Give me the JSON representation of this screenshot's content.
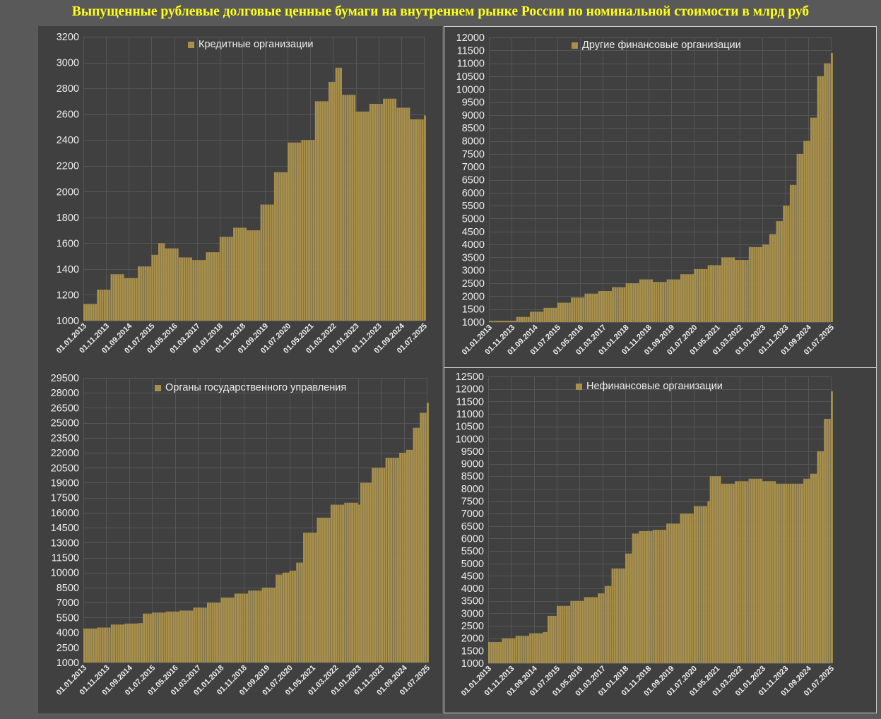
{
  "title": "Выпущенные рублевые долговые ценные бумаги на внутреннем рынке России по номинальной стоимости в млрд руб",
  "colors": {
    "bar": "#a8904c",
    "panel": "#404040",
    "background": "#595959",
    "title": "#ffff1a",
    "text": "#eeeeee"
  },
  "chart_data": [
    {
      "type": "bar",
      "legend": "Кредитные организации",
      "legend_position": "top-center",
      "grid": true,
      "ylim": [
        1000,
        3200
      ],
      "yticks": [
        1000,
        1200,
        1400,
        1600,
        1800,
        2000,
        2200,
        2400,
        2600,
        2800,
        3000,
        3200
      ],
      "xlim": [
        "01.01.2013",
        "01.07.2025"
      ],
      "xticks": [
        "01.01.2013",
        "01.11.2013",
        "01.09.2014",
        "01.07.2015",
        "01.05.2016",
        "01.03.2017",
        "01.01.2018",
        "01.11.2018",
        "01.09.2019",
        "01.07.2020",
        "01.05.2021",
        "01.03.2022",
        "01.01.2023",
        "01.11.2023",
        "01.09.2024",
        "01.07.2025"
      ],
      "x": [
        "01.01.2013",
        "01.07.2013",
        "01.01.2014",
        "01.07.2014",
        "01.01.2015",
        "01.07.2015",
        "01.10.2015",
        "01.01.2016",
        "01.07.2016",
        "01.01.2017",
        "01.07.2017",
        "01.01.2018",
        "01.07.2018",
        "01.01.2019",
        "01.07.2019",
        "01.01.2020",
        "01.07.2020",
        "01.01.2021",
        "01.07.2021",
        "01.01.2022",
        "01.04.2022",
        "01.07.2022",
        "01.01.2023",
        "01.07.2023",
        "01.01.2024",
        "01.07.2024",
        "01.01.2025",
        "01.07.2025"
      ],
      "values": [
        1130,
        1240,
        1360,
        1330,
        1420,
        1510,
        1600,
        1560,
        1490,
        1470,
        1530,
        1650,
        1720,
        1700,
        1900,
        2150,
        2380,
        2400,
        2700,
        2850,
        2960,
        2750,
        2620,
        2680,
        2720,
        2650,
        2560,
        2590
      ]
    },
    {
      "type": "bar",
      "legend": "Другие финансовые организации",
      "legend_position": "top-center",
      "grid": true,
      "ylim": [
        1000,
        12000
      ],
      "yticks": [
        1000,
        1500,
        2000,
        2500,
        3000,
        3500,
        4000,
        4500,
        5000,
        5500,
        6000,
        6500,
        7000,
        7500,
        8000,
        8500,
        9000,
        9500,
        10000,
        10500,
        11000,
        11500,
        12000
      ],
      "xlim": [
        "01.01.2013",
        "01.07.2025"
      ],
      "xticks": [
        "01.01.2013",
        "01.11.2013",
        "01.09.2014",
        "01.07.2015",
        "01.05.2016",
        "01.03.2017",
        "01.01.2018",
        "01.11.2018",
        "01.09.2019",
        "01.07.2020",
        "01.05.2021",
        "01.03.2022",
        "01.01.2023",
        "01.11.2023",
        "01.09.2024",
        "01.07.2025"
      ],
      "x": [
        "01.01.2013",
        "01.01.2014",
        "01.07.2014",
        "01.01.2015",
        "01.07.2015",
        "01.01.2016",
        "01.07.2016",
        "01.01.2017",
        "01.07.2017",
        "01.01.2018",
        "01.07.2018",
        "01.01.2019",
        "01.07.2019",
        "01.01.2020",
        "01.07.2020",
        "01.01.2021",
        "01.07.2021",
        "01.01.2022",
        "01.07.2022",
        "01.01.2023",
        "01.04.2023",
        "01.07.2023",
        "01.10.2023",
        "01.01.2024",
        "01.04.2024",
        "01.07.2024",
        "01.10.2024",
        "01.01.2025",
        "01.04.2025",
        "01.07.2025"
      ],
      "values": [
        1050,
        1200,
        1400,
        1550,
        1750,
        1950,
        2100,
        2200,
        2350,
        2500,
        2650,
        2550,
        2650,
        2850,
        3050,
        3200,
        3500,
        3400,
        3900,
        4000,
        4400,
        4900,
        5500,
        6300,
        7500,
        8000,
        8900,
        10500,
        11000,
        11400
      ]
    },
    {
      "type": "bar",
      "legend": "Органы государственного управления",
      "legend_position": "top-center",
      "grid": true,
      "ylim": [
        1000,
        29500
      ],
      "yticks": [
        1000,
        2500,
        4000,
        5500,
        7000,
        8500,
        10000,
        11500,
        13000,
        14500,
        16000,
        17500,
        19000,
        20500,
        22000,
        23500,
        25000,
        26500,
        28000,
        29500
      ],
      "xlim": [
        "01.01.2013",
        "01.07.2025"
      ],
      "xticks": [
        "01.01.2013",
        "01.11.2013",
        "01.09.2014",
        "01.07.2015",
        "01.05.2016",
        "01.03.2017",
        "01.01.2018",
        "01.11.2018",
        "01.09.2019",
        "01.07.2020",
        "01.05.2021",
        "01.03.2022",
        "01.01.2023",
        "01.11.2023",
        "01.09.2024",
        "01.07.2025"
      ],
      "x": [
        "01.01.2013",
        "01.07.2013",
        "01.01.2014",
        "01.07.2014",
        "01.01.2015",
        "01.03.2015",
        "01.07.2015",
        "01.01.2016",
        "01.07.2016",
        "01.01.2017",
        "01.07.2017",
        "01.01.2018",
        "01.07.2018",
        "01.01.2019",
        "01.07.2019",
        "01.01.2020",
        "01.04.2020",
        "01.07.2020",
        "01.10.2020",
        "01.01.2021",
        "01.07.2021",
        "01.01.2022",
        "01.07.2022",
        "01.01.2023",
        "01.02.2023",
        "01.07.2023",
        "01.01.2024",
        "01.07.2024",
        "01.10.2024",
        "01.01.2025",
        "01.04.2025",
        "01.07.2025"
      ],
      "values": [
        4400,
        4500,
        4800,
        4900,
        4950,
        5900,
        6000,
        6100,
        6200,
        6500,
        7000,
        7500,
        7900,
        8200,
        8500,
        9800,
        10000,
        10200,
        11000,
        14000,
        15500,
        16800,
        17000,
        16800,
        19000,
        20500,
        21500,
        22000,
        22300,
        24500,
        26000,
        27000
      ]
    },
    {
      "type": "bar",
      "legend": "Нефинансовые организации",
      "legend_position": "top-center",
      "grid": true,
      "ylim": [
        1000,
        12500
      ],
      "yticks": [
        1000,
        1500,
        2000,
        2500,
        3000,
        3500,
        4000,
        4500,
        5000,
        5500,
        6000,
        6500,
        7000,
        7500,
        8000,
        8500,
        9000,
        9500,
        10000,
        10500,
        11000,
        11500,
        12000,
        12500
      ],
      "xlim": [
        "01.01.2013",
        "01.07.2025"
      ],
      "xticks": [
        "01.01.2013",
        "01.11.2013",
        "01.09.2014",
        "01.07.2015",
        "01.05.2016",
        "01.03.2017",
        "01.01.2018",
        "01.11.2018",
        "01.09.2019",
        "01.07.2020",
        "01.05.2021",
        "01.03.2022",
        "01.01.2023",
        "01.11.2023",
        "01.09.2024",
        "01.07.2025"
      ],
      "x": [
        "01.01.2013",
        "01.07.2013",
        "01.01.2014",
        "01.07.2014",
        "01.01.2015",
        "01.03.2015",
        "01.07.2015",
        "01.01.2016",
        "01.07.2016",
        "01.01.2017",
        "01.04.2017",
        "01.07.2017",
        "01.01.2018",
        "01.04.2018",
        "01.07.2018",
        "01.01.2019",
        "01.07.2019",
        "01.01.2020",
        "01.07.2020",
        "01.01.2021",
        "01.02.2021",
        "01.07.2021",
        "01.01.2022",
        "01.07.2022",
        "01.01.2023",
        "01.07.2023",
        "01.01.2024",
        "01.07.2024",
        "01.10.2024",
        "01.01.2025",
        "01.04.2025",
        "01.07.2025"
      ],
      "values": [
        1850,
        2000,
        2100,
        2200,
        2250,
        2900,
        3300,
        3500,
        3650,
        3800,
        4100,
        4800,
        5400,
        6200,
        6300,
        6350,
        6600,
        7000,
        7300,
        7500,
        8500,
        8200,
        8300,
        8400,
        8300,
        8200,
        8200,
        8400,
        8600,
        9500,
        10800,
        11900
      ]
    }
  ]
}
